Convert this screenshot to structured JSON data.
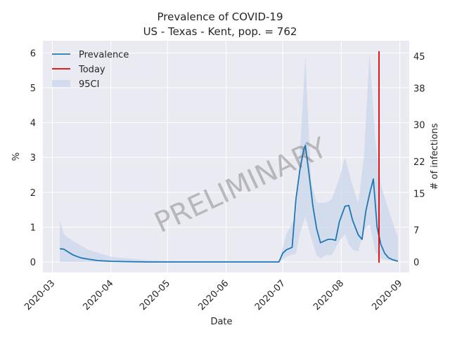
{
  "chart_data": {
    "type": "line",
    "title": "Prevalence of COVID-19",
    "subtitle": "US - Texas - Kent, pop. = 762",
    "xlabel": "Date",
    "ylabel": "%",
    "y2label": "# of infections",
    "watermark": "PRELIMINARY",
    "xlim": [
      "2020-02-25",
      "2020-09-06"
    ],
    "ylim": [
      -0.3,
      6.35
    ],
    "x_ticks": [
      "2020-03",
      "2020-04",
      "2020-05",
      "2020-06",
      "2020-07",
      "2020-08",
      "2020-09"
    ],
    "y_ticks": [
      "0",
      "1",
      "2",
      "3",
      "4",
      "5",
      "6"
    ],
    "y2_ticks": [
      "0",
      "7",
      "15",
      "22",
      "30",
      "38",
      "45"
    ],
    "grid": true,
    "legend_placement": "top-left",
    "colors": {
      "prevalence": "#1f77b4",
      "today": "#e00000",
      "ci": "#c9d7ea",
      "background": "#eaeaf2",
      "grid": "#ffffff"
    },
    "series": [
      {
        "name": "Prevalence",
        "x": [
          "2020-03-05",
          "2020-03-07",
          "2020-03-09",
          "2020-03-12",
          "2020-03-16",
          "2020-03-20",
          "2020-03-25",
          "2020-04-01",
          "2020-04-10",
          "2020-04-20",
          "2020-05-01",
          "2020-06-01",
          "2020-06-29",
          "2020-07-01",
          "2020-07-03",
          "2020-07-06",
          "2020-07-08",
          "2020-07-10",
          "2020-07-12",
          "2020-07-13",
          "2020-07-15",
          "2020-07-17",
          "2020-07-19",
          "2020-07-21",
          "2020-07-23",
          "2020-07-25",
          "2020-07-27",
          "2020-07-29",
          "2020-07-31",
          "2020-08-03",
          "2020-08-05",
          "2020-08-07",
          "2020-08-10",
          "2020-08-12",
          "2020-08-14",
          "2020-08-16",
          "2020-08-18",
          "2020-08-20",
          "2020-08-22",
          "2020-08-24",
          "2020-08-26",
          "2020-08-28",
          "2020-08-31"
        ],
        "values": [
          0.38,
          0.37,
          0.3,
          0.2,
          0.12,
          0.08,
          0.04,
          0.02,
          0.01,
          0.0,
          0.0,
          0.0,
          0.0,
          0.25,
          0.35,
          0.42,
          1.8,
          2.6,
          3.2,
          3.35,
          2.5,
          1.6,
          0.95,
          0.55,
          0.6,
          0.65,
          0.65,
          0.62,
          1.15,
          1.6,
          1.62,
          1.2,
          0.78,
          0.65,
          1.45,
          1.95,
          2.38,
          1.0,
          0.5,
          0.25,
          0.12,
          0.07,
          0.02
        ]
      },
      {
        "name": "Today",
        "x": [
          "2020-08-21",
          "2020-08-21"
        ],
        "values": [
          -0.02,
          6.05
        ]
      },
      {
        "name": "95CI",
        "x": [
          "2020-03-05",
          "2020-03-07",
          "2020-03-12",
          "2020-03-20",
          "2020-04-01",
          "2020-04-20",
          "2020-05-01",
          "2020-06-29",
          "2020-07-03",
          "2020-07-08",
          "2020-07-10",
          "2020-07-13",
          "2020-07-16",
          "2020-07-19",
          "2020-07-21",
          "2020-07-24",
          "2020-07-27",
          "2020-07-31",
          "2020-08-03",
          "2020-08-05",
          "2020-08-07",
          "2020-08-10",
          "2020-08-13",
          "2020-08-16",
          "2020-08-19",
          "2020-08-22",
          "2020-08-26",
          "2020-08-31"
        ],
        "lower": [
          0.0,
          0.0,
          0.0,
          0.0,
          0.0,
          0.0,
          0.0,
          0.0,
          0.15,
          0.25,
          0.8,
          1.3,
          0.7,
          0.2,
          0.1,
          0.2,
          0.2,
          0.6,
          0.8,
          0.5,
          0.35,
          0.3,
          0.9,
          1.1,
          0.3,
          0.1,
          0.05,
          0.0
        ],
        "upper": [
          1.2,
          0.8,
          0.6,
          0.35,
          0.15,
          0.05,
          0.02,
          0.0,
          0.8,
          1.3,
          3.0,
          5.9,
          2.3,
          1.7,
          1.7,
          1.7,
          1.8,
          2.4,
          3.0,
          2.6,
          2.2,
          1.7,
          3.0,
          6.0,
          3.5,
          2.2,
          1.5,
          0.7
        ]
      }
    ]
  }
}
